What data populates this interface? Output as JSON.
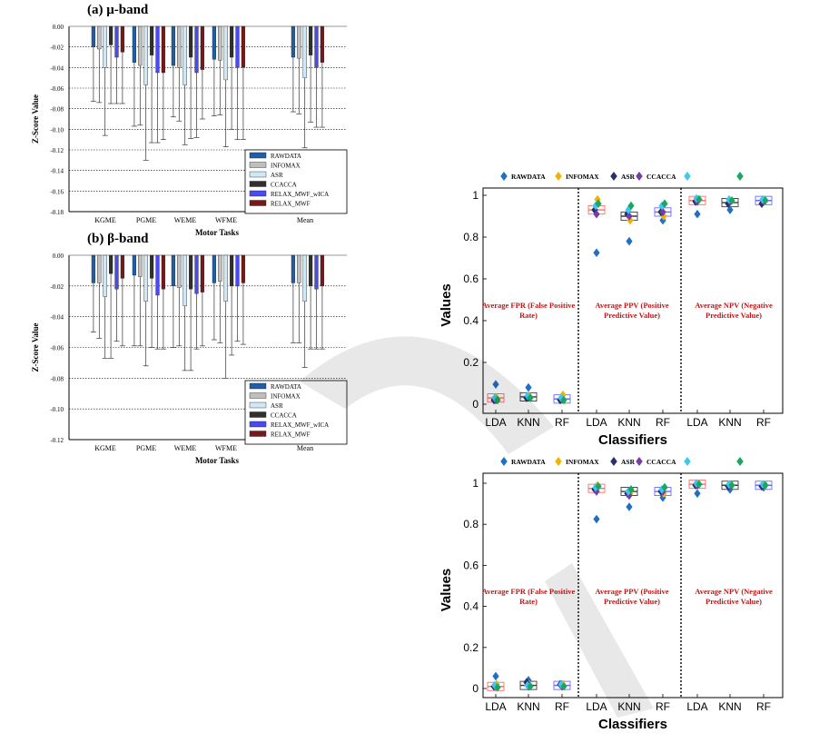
{
  "colors": {
    "RAWDATA": "#1f5fa8",
    "INFOMAX": "#bfbfbf",
    "ASR": "#cfe8f7",
    "CCACCA": "#303030",
    "RELAX_MWF_wICA": "#4a4af0",
    "RELAX_MWF": "#7a1818",
    "mk_raw": "#1f6fc4",
    "mk_info": "#f0b400",
    "mk_asr": "#27306a",
    "mk_cca": "#7a3aa8",
    "mk_cyan": "#3cc8f0",
    "mk_green": "#1aa860",
    "box_pink": "#ff6a6a",
    "box_gray": "#3a3a3a",
    "box_blue": "#6a6aff",
    "annot": "#c01818"
  },
  "legend_bar": [
    "RAWDATA",
    "INFOMAX",
    "ASR",
    "CCACCA",
    "RELAX_MWF_wICA",
    "RELAX_MWF"
  ],
  "legend_scatter": [
    "RAWDATA",
    "INFOMAX",
    "ASR",
    "CCACCA",
    "",
    ""
  ],
  "chart_data": [
    {
      "type": "bar",
      "title": "(a) μ-band",
      "xlabel": "Motor Tasks",
      "ylabel": "Z-Score Value",
      "ylim": [
        -0.18,
        0
      ],
      "yticks": [
        "0.00",
        "-0.02",
        "-0.04",
        "-0.06",
        "-0.08",
        "-0.10",
        "-0.12",
        "-0.14",
        "-0.16",
        "-0.18"
      ],
      "categories": [
        "KGME",
        "PGME",
        "WEME",
        "WFME",
        "Mean"
      ],
      "series": [
        {
          "name": "RAWDATA",
          "values": [
            -0.02,
            -0.035,
            -0.038,
            -0.032,
            -0.03
          ],
          "err": [
            0.053,
            0.062,
            0.05,
            0.055,
            0.053
          ]
        },
        {
          "name": "INFOMAX",
          "values": [
            -0.022,
            -0.038,
            -0.04,
            -0.033,
            -0.031
          ],
          "err": [
            0.052,
            0.058,
            0.052,
            0.053,
            0.054
          ]
        },
        {
          "name": "ASR",
          "values": [
            -0.04,
            -0.057,
            -0.057,
            -0.052,
            -0.05
          ],
          "err": [
            0.066,
            0.073,
            0.058,
            0.065,
            0.068
          ]
        },
        {
          "name": "CCACCA",
          "values": [
            -0.018,
            -0.028,
            -0.03,
            -0.03,
            -0.028
          ],
          "err": [
            0.057,
            0.085,
            0.079,
            0.07,
            0.065
          ]
        },
        {
          "name": "RELAX_MWF_wICA",
          "values": [
            -0.03,
            -0.045,
            -0.045,
            -0.04,
            -0.04
          ],
          "err": [
            0.045,
            0.068,
            0.063,
            0.07,
            0.058
          ]
        },
        {
          "name": "RELAX_MWF",
          "values": [
            -0.025,
            -0.045,
            -0.042,
            -0.04,
            -0.035
          ],
          "err": [
            0.05,
            0.065,
            0.048,
            0.07,
            0.063
          ]
        }
      ],
      "legend": "bottom-right"
    },
    {
      "type": "bar",
      "title": "(b) β-band",
      "xlabel": "Motor Tasks",
      "ylabel": "Z-Score Value",
      "ylim": [
        -0.12,
        0
      ],
      "yticks": [
        "0.00",
        "-0.02",
        "-0.04",
        "-0.06",
        "-0.08",
        "-0.10",
        "-0.12"
      ],
      "categories": [
        "KGME",
        "PGME",
        "WEME",
        "WFME",
        "Mean"
      ],
      "series": [
        {
          "name": "RAWDATA",
          "values": [
            -0.018,
            -0.013,
            -0.02,
            -0.018,
            -0.018
          ],
          "err": [
            0.032,
            0.046,
            0.04,
            0.037,
            0.039
          ]
        },
        {
          "name": "INFOMAX",
          "values": [
            -0.018,
            -0.014,
            -0.021,
            -0.017,
            -0.018
          ],
          "err": [
            0.036,
            0.045,
            0.038,
            0.04,
            0.039
          ]
        },
        {
          "name": "ASR",
          "values": [
            -0.027,
            -0.03,
            -0.033,
            -0.03,
            -0.03
          ],
          "err": [
            0.04,
            0.042,
            0.042,
            0.05,
            0.043
          ]
        },
        {
          "name": "CCACCA",
          "values": [
            -0.012,
            -0.015,
            -0.022,
            -0.02,
            -0.02
          ],
          "err": [
            0.055,
            0.045,
            0.053,
            0.045,
            0.041
          ]
        },
        {
          "name": "RELAX_MWF_wICA",
          "values": [
            -0.022,
            -0.026,
            -0.025,
            -0.02,
            -0.022
          ],
          "err": [
            0.034,
            0.035,
            0.036,
            0.036,
            0.039
          ]
        },
        {
          "name": "RELAX_MWF",
          "values": [
            -0.015,
            -0.022,
            -0.024,
            -0.018,
            -0.02
          ],
          "err": [
            0.044,
            0.039,
            0.035,
            0.04,
            0.041
          ]
        }
      ],
      "legend": "bottom-right"
    },
    {
      "type": "scatter",
      "xlabel": "Classifiers",
      "ylabel": "Values",
      "ylim": [
        0,
        1
      ],
      "yticks": [
        "0",
        "0.2",
        "0.4",
        "0.6",
        "0.8",
        "1"
      ],
      "categories": [
        "LDA",
        "KNN",
        "RF",
        "LDA",
        "KNN",
        "RF",
        "LDA",
        "KNN",
        "RF"
      ],
      "annotations": [
        "Average FPR (False Positive Rate)",
        "Average PPV (Positive Predictive Value)",
        "Average NPV (Negative Predictive Value)"
      ],
      "box_medians": [
        0.03,
        0.035,
        0.025,
        0.93,
        0.9,
        0.92,
        0.975,
        0.965,
        0.975
      ],
      "points": [
        [
          0.095,
          0.03,
          0.02,
          0.02,
          0.03,
          0.02
        ],
        [
          0.08,
          0.04,
          0.03,
          0.035,
          0.04,
          0.03
        ],
        [
          0.03,
          0.045,
          0.02,
          0.025,
          0.03,
          0.02
        ],
        [
          0.725,
          0.98,
          0.93,
          0.91,
          0.95,
          0.96
        ],
        [
          0.78,
          0.88,
          0.91,
          0.9,
          0.93,
          0.95
        ],
        [
          0.88,
          0.9,
          0.92,
          0.92,
          0.95,
          0.96
        ],
        [
          0.91,
          0.98,
          0.97,
          0.97,
          0.985,
          0.98
        ],
        [
          0.93,
          0.97,
          0.96,
          0.97,
          0.98,
          0.975
        ],
        [
          0.97,
          0.975,
          0.96,
          0.97,
          0.98,
          0.975
        ]
      ]
    },
    {
      "type": "scatter",
      "xlabel": "Classifiers",
      "ylabel": "Values",
      "ylim": [
        0,
        1
      ],
      "yticks": [
        "0",
        "0.2",
        "0.4",
        "0.6",
        "0.8",
        "1"
      ],
      "categories": [
        "LDA",
        "KNN",
        "RF",
        "LDA",
        "KNN",
        "RF",
        "LDA",
        "KNN",
        "RF"
      ],
      "annotations": [
        "Average FPR (False Positive Rate)",
        "Average PPV (Positive Predictive Value)",
        "Average NPV (Negative Predictive Value)"
      ],
      "box_medians": [
        0.01,
        0.015,
        0.015,
        0.975,
        0.96,
        0.96,
        0.995,
        0.99,
        0.99
      ],
      "points": [
        [
          0.06,
          0.02,
          0.01,
          0.01,
          0.015,
          0.005
        ],
        [
          0.04,
          0.02,
          0.03,
          0.01,
          0.015,
          0.01
        ],
        [
          0.02,
          0.02,
          0.02,
          0.01,
          0.02,
          0.01
        ],
        [
          0.825,
          0.99,
          0.97,
          0.96,
          0.98,
          0.985
        ],
        [
          0.885,
          0.95,
          0.95,
          0.94,
          0.96,
          0.97
        ],
        [
          0.93,
          0.95,
          0.96,
          0.96,
          0.97,
          0.98
        ],
        [
          0.95,
          0.995,
          0.99,
          0.99,
          1.0,
          0.995
        ],
        [
          0.97,
          0.99,
          0.985,
          0.985,
          0.995,
          0.99
        ],
        [
          0.98,
          0.99,
          0.985,
          0.99,
          0.995,
          0.99
        ]
      ]
    }
  ]
}
